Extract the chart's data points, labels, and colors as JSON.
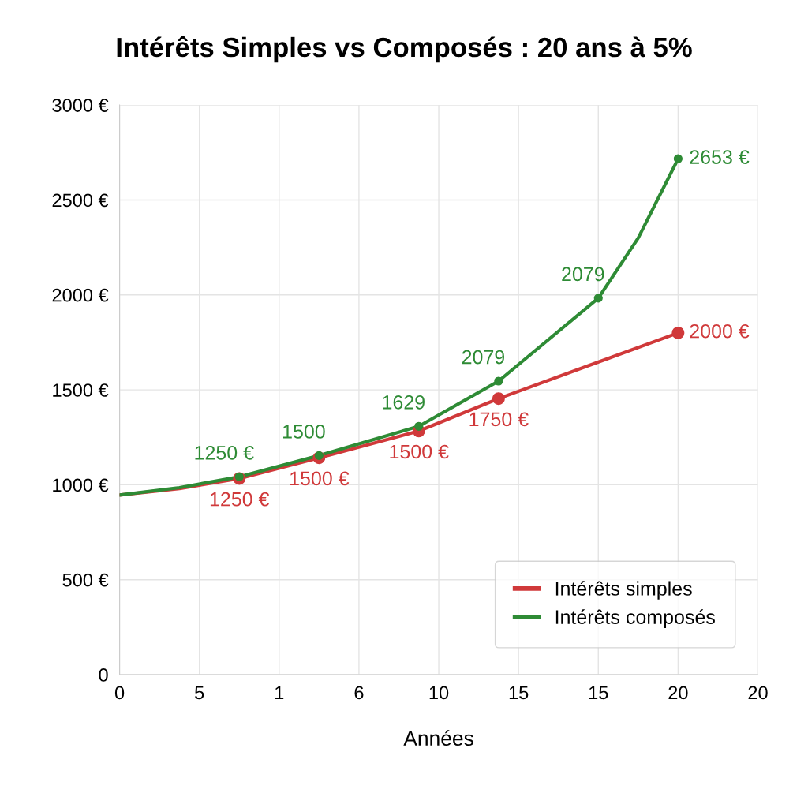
{
  "chart_data": {
    "type": "line",
    "title": "Intérêts Simples vs Composés : 20 ans à 5%",
    "xlabel": "Années",
    "categories": [
      "0",
      null,
      null,
      null,
      "5",
      null,
      null,
      null,
      "1",
      null,
      null,
      null,
      "6",
      null,
      null,
      null,
      "10",
      null,
      null,
      null,
      "15",
      null,
      null,
      null,
      "15",
      null,
      null,
      null,
      "20",
      null,
      null,
      null,
      "20"
    ],
    "ylim": [
      0,
      3000
    ],
    "yticks": [
      {
        "value": 0,
        "label": "0"
      },
      {
        "value": 500,
        "label": "500 €"
      },
      {
        "value": 1000,
        "label": "1000 €"
      },
      {
        "value": 1500,
        "label": "1500 €"
      },
      {
        "value": 2000,
        "label": "2000 €"
      },
      {
        "value": 2500,
        "label": "2500 €"
      },
      {
        "value": 3000,
        "label": "3000 €"
      }
    ],
    "grid": true,
    "legend": "bottom right",
    "line_style": "solid",
    "series": [
      {
        "name": "Intérêts simples",
        "color": "#d0393a",
        "marker": "none",
        "values": [
          946,
          null,
          null,
          980,
          null,
          null,
          1033,
          null,
          null,
          null,
          1142,
          null,
          null,
          null,
          null,
          1283,
          null,
          null,
          null,
          1454,
          null,
          null,
          null,
          null,
          null,
          null,
          null,
          null,
          1800,
          null,
          null,
          null,
          null
        ]
      },
      {
        "name": "Intérêts composés",
        "color": "#2e8b35",
        "marker": "none",
        "values": [
          946,
          null,
          null,
          985,
          null,
          null,
          1042,
          null,
          null,
          null,
          1154,
          null,
          null,
          null,
          null,
          1308,
          null,
          null,
          null,
          1546,
          null,
          null,
          null,
          null,
          1983,
          null,
          2300,
          null,
          2717,
          null,
          null,
          null,
          null
        ]
      },
      {
        "color": "#d0393a",
        "type": "scatter",
        "marker": "circle",
        "values": [
          null,
          null,
          null,
          null,
          null,
          null,
          1033,
          null,
          null,
          null,
          1142,
          null,
          null,
          null,
          null,
          1283,
          null,
          null,
          null,
          1454,
          null,
          null,
          null,
          null,
          null,
          null,
          null,
          null,
          1800,
          null,
          null,
          null,
          null
        ]
      },
      {
        "color": "#2e8b35",
        "type": "scatter",
        "marker": "circle",
        "values": [
          null,
          null,
          null,
          null,
          null,
          null,
          1042,
          null,
          null,
          null,
          1154,
          null,
          null,
          null,
          null,
          1308,
          null,
          null,
          null,
          1546,
          null,
          null,
          null,
          null,
          1983,
          null,
          null,
          null,
          2717,
          null,
          null,
          null,
          null
        ]
      }
    ],
    "annotations": [
      "1250 €",
      "1500 €",
      "1500 €",
      "1750 €",
      "2000 €",
      "1250 €",
      "1500",
      "1629",
      "2079",
      "2079",
      "2653 €"
    ]
  }
}
